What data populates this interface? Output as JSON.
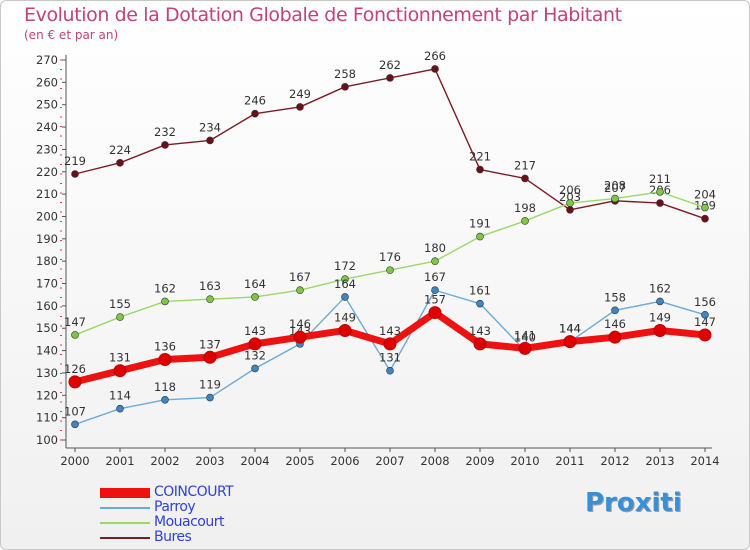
{
  "title": "Evolution de la Dotation Globale de Fonctionnement par Habitant",
  "subtitle": "(en € et par an)",
  "logo": {
    "text": "Proxiti"
  },
  "chart_data": {
    "type": "line",
    "title": "Evolution de la Dotation Globale de Fonctionnement par Habitant",
    "subtitle": "(en € et par an)",
    "xlabel": "",
    "ylabel": "",
    "ylim": [
      100,
      270
    ],
    "ytick_step": 10,
    "grid": false,
    "legend_position": "bottom-left",
    "categories": [
      "2000",
      "2001",
      "2002",
      "2003",
      "2004",
      "2005",
      "2006",
      "2007",
      "2008",
      "2009",
      "2010",
      "2011",
      "2012",
      "2013",
      "2014"
    ],
    "yticks": [
      "100",
      "110",
      "120",
      "130",
      "140",
      "150",
      "160",
      "170",
      "180",
      "190",
      "200",
      "210",
      "220",
      "230",
      "240",
      "250",
      "260",
      "270"
    ],
    "series": [
      {
        "name": "Bures",
        "color": "#7b1c24",
        "marker": "#6a1018",
        "values": [
          219,
          224,
          232,
          234,
          246,
          249,
          258,
          262,
          266,
          221,
          217,
          203,
          207,
          206,
          199
        ],
        "labels": [
          "219",
          "224",
          "232",
          "234",
          "246",
          "249",
          "258",
          "262",
          "266",
          "221",
          "217",
          "203",
          "207",
          "206",
          "199"
        ]
      },
      {
        "name": "Mouacourt",
        "color": "#9bd86b",
        "marker": "#7cc843",
        "values": [
          147,
          155,
          162,
          163,
          164,
          167,
          172,
          176,
          180,
          191,
          198,
          206,
          208,
          211,
          204
        ],
        "labels": [
          "147",
          "155",
          "162",
          "163",
          "164",
          "167",
          "172",
          "176",
          "180",
          "191",
          "198",
          "206",
          "208",
          "211",
          "204"
        ]
      },
      {
        "name": "Parroy",
        "color": "#6aaad8",
        "marker": "#3d86c6",
        "values": [
          107,
          114,
          118,
          119,
          132,
          143,
          164,
          131,
          167,
          161,
          140,
          144,
          158,
          162,
          156
        ],
        "labels": [
          "107",
          "114",
          "118",
          "119",
          "132",
          "143",
          "164",
          "131",
          "167",
          "161",
          "140",
          "144",
          "158",
          "162",
          "156"
        ]
      },
      {
        "name": "COINCOURT",
        "color": "#ee1111",
        "marker": "#dd0000",
        "values": [
          126,
          131,
          136,
          137,
          143,
          146,
          149,
          143,
          157,
          143,
          141,
          144,
          146,
          149,
          147
        ],
        "labels": [
          "126",
          "131",
          "136",
          "137",
          "143",
          "146",
          "149",
          "143",
          "157",
          "143",
          "141",
          "144",
          "146",
          "149",
          "147"
        ]
      }
    ]
  },
  "legend": [
    {
      "name": "COINCOURT",
      "color": "#ee1111",
      "text_color": "#2f3fe0"
    },
    {
      "name": "Parroy",
      "color": "#6aaad8",
      "text_color": "#2f3fe0"
    },
    {
      "name": "Mouacourt",
      "color": "#9bd86b",
      "text_color": "#2f3fe0"
    },
    {
      "name": "Bures",
      "color": "#7b1c24",
      "text_color": "#2f3fe0"
    }
  ]
}
